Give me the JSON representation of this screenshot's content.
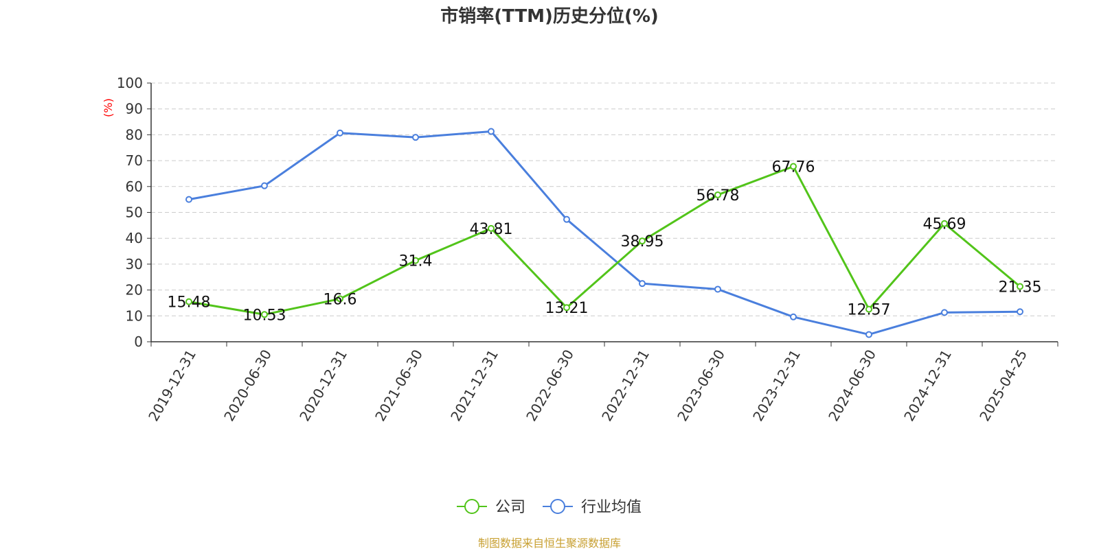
{
  "chart_data": {
    "type": "line",
    "title": "市销率(TTM)历史分位(%)",
    "ylabel": "(%)",
    "ylim": [
      0,
      100
    ],
    "yticks": [
      0,
      10,
      20,
      30,
      40,
      50,
      60,
      70,
      80,
      90,
      100
    ],
    "grid": true,
    "legend_position": "bottom-center",
    "categories": [
      "2019-12-31",
      "2020-06-30",
      "2020-12-31",
      "2021-06-30",
      "2021-12-31",
      "2022-06-30",
      "2022-12-31",
      "2023-06-30",
      "2023-12-31",
      "2024-06-30",
      "2024-12-31",
      "2025-04-25"
    ],
    "series": [
      {
        "name": "公司",
        "color": "#52c41a",
        "show_labels": true,
        "values": [
          15.48,
          10.53,
          16.6,
          31.4,
          43.81,
          13.21,
          38.95,
          56.78,
          67.76,
          12.57,
          45.69,
          21.35
        ]
      },
      {
        "name": "行业均值",
        "color": "#4a7fdd",
        "show_labels": false,
        "values": [
          55,
          60.3,
          80.7,
          79,
          81.3,
          47.3,
          22.5,
          20.3,
          9.6,
          2.8,
          11.3,
          11.6
        ]
      }
    ]
  },
  "footer": {
    "source": "制图数据来自恒生聚源数据库"
  }
}
